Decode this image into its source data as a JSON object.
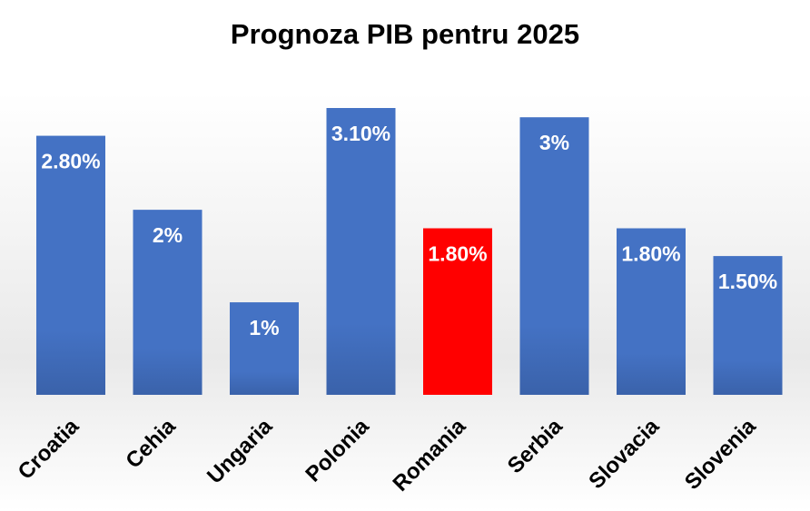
{
  "chart_data": {
    "type": "bar",
    "title": "Prognoza PIB pentru 2025",
    "categories": [
      "Croatia",
      "Cehia",
      "Ungaria",
      "Polonia",
      "Romania",
      "Serbia",
      "Slovacia",
      "Slovenia"
    ],
    "values": [
      2.8,
      2.0,
      1.0,
      3.1,
      1.8,
      3.0,
      1.8,
      1.5
    ],
    "data_labels": [
      "2.80%",
      "2%",
      "1%",
      "3.10%",
      "1.80%",
      "3%",
      "1.80%",
      "1.50%"
    ],
    "unit": "%",
    "ylim": [
      0,
      3.1
    ],
    "grid": false,
    "legend": "none",
    "colors": {
      "default_bar": "#4472c4",
      "highlight_bar": "#ff0000",
      "highlight_category": "Romania"
    }
  }
}
